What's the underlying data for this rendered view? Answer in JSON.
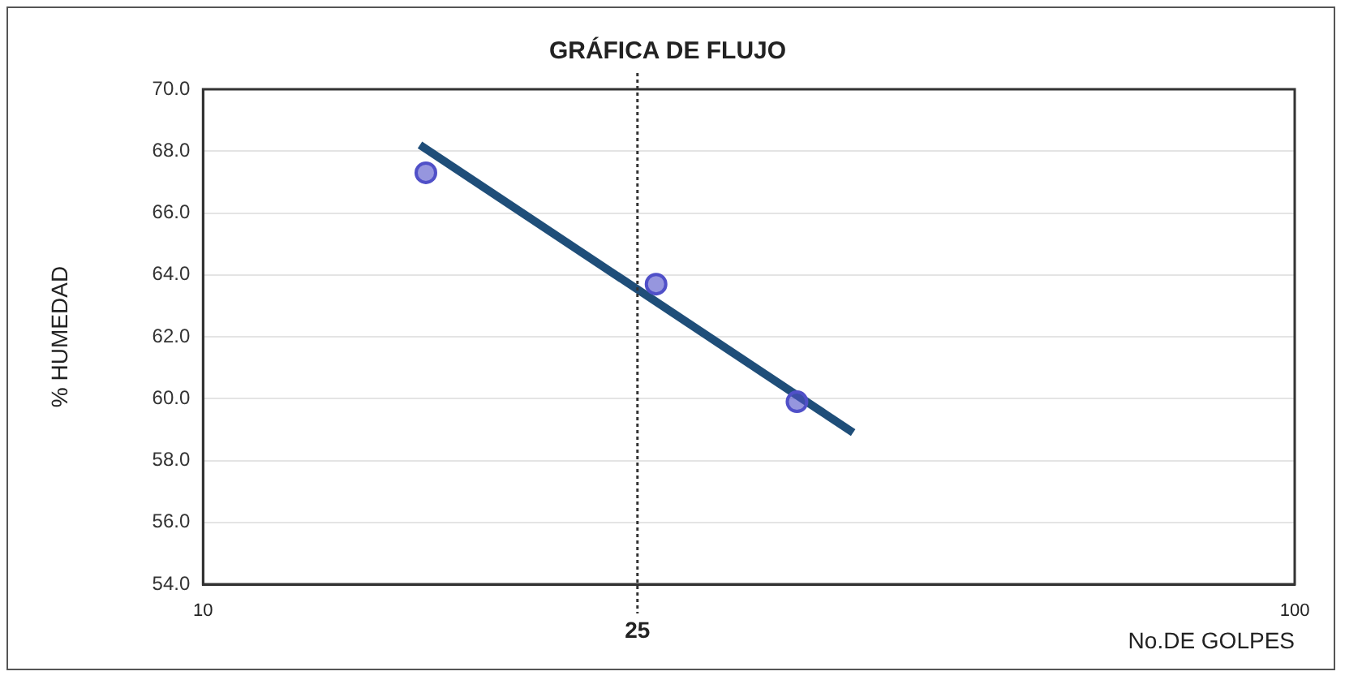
{
  "chart_data": {
    "type": "scatter",
    "title": "GRÁFICA DE FLUJO",
    "xlabel": "No.DE GOLPES",
    "ylabel": "% HUMEDAD",
    "log": "x",
    "xlim": [
      10,
      100
    ],
    "xticks": [
      10,
      100
    ],
    "ylim": [
      54,
      70
    ],
    "yticks": [
      {
        "value": 54,
        "label": "54.0"
      },
      {
        "value": 56,
        "label": "56.0"
      },
      {
        "value": 58,
        "label": "58.0"
      },
      {
        "value": 60,
        "label": "60.0"
      },
      {
        "value": 62,
        "label": "62.0"
      },
      {
        "value": 64,
        "label": "64.0"
      },
      {
        "value": 66,
        "label": "66.0"
      },
      {
        "value": 68,
        "label": "68.0"
      },
      {
        "value": 70,
        "label": "70.0"
      }
    ],
    "grid": "y",
    "legend": false,
    "marker": "circle",
    "series": [
      {
        "color": "#5050c8",
        "x": [
          16,
          26,
          35
        ],
        "values": [
          67.3,
          63.7,
          59.9
        ]
      },
      {
        "type": "line",
        "color": "#1f4e79",
        "x": [
          15.8,
          39.4
        ],
        "values": [
          68.2,
          58.9
        ],
        "marker": "none"
      }
    ],
    "ref_lines": [
      {
        "axis": "x",
        "value": 25,
        "label": "25",
        "line_style": "dotted",
        "color": "#333333"
      }
    ]
  }
}
